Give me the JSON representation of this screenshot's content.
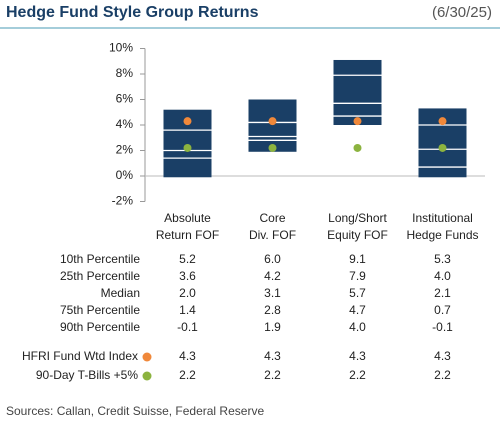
{
  "chart_data": {
    "type": "floating_bar",
    "title": "Hedge Fund Style Group Returns",
    "subtitle": "(6/30/25)",
    "categories": [
      "Absolute Return FOF",
      "Core Div. FOF",
      "Long/Short Equity FOF",
      "Institutional Hedge Funds"
    ],
    "color": "#1a3f66",
    "ylim": [
      -2,
      10
    ],
    "yticks": [
      {
        "value": -2,
        "label": "-2%"
      },
      {
        "value": 0,
        "label": "0%"
      },
      {
        "value": 2,
        "label": "2%"
      },
      {
        "value": 4,
        "label": "4%"
      },
      {
        "value": 6,
        "label": "6%"
      },
      {
        "value": 8,
        "label": "8%"
      },
      {
        "value": 10,
        "label": "10%"
      }
    ],
    "series": [
      {
        "name": "10th Percentile",
        "values": [
          5.2,
          6.0,
          9.1,
          5.3
        ],
        "value_labels": [
          "5.2",
          "6.0",
          "9.1",
          "5.3"
        ]
      },
      {
        "name": "25th Percentile",
        "values": [
          3.6,
          4.2,
          7.9,
          4.0
        ],
        "value_labels": [
          "3.6",
          "4.2",
          "7.9",
          "4.0"
        ]
      },
      {
        "name": "Median",
        "values": [
          2.0,
          3.1,
          5.7,
          2.1
        ],
        "value_labels": [
          "2.0",
          "3.1",
          "5.7",
          "2.1"
        ]
      },
      {
        "name": "75th Percentile",
        "values": [
          1.4,
          2.8,
          4.7,
          0.7
        ]
      },
      {
        "name": "90th Percentile",
        "values": [
          -0.1,
          1.9,
          4.0,
          -0.1
        ],
        "value_labels": [
          "-0.1",
          "1.9",
          "4.0",
          "-0.1"
        ]
      },
      {
        "name": "HFRI Fund Wtd Index",
        "color": "#f0883a",
        "values": [
          4.3,
          4.3,
          4.3,
          4.3
        ]
      },
      {
        "name": "90-Day T-Bills +5%",
        "color": "#8cb33f",
        "values": [
          2.2,
          2.2,
          2.2,
          2.2
        ]
      }
    ],
    "source": "Sources: Callan, Credit Suisse, Federal Reserve"
  }
}
